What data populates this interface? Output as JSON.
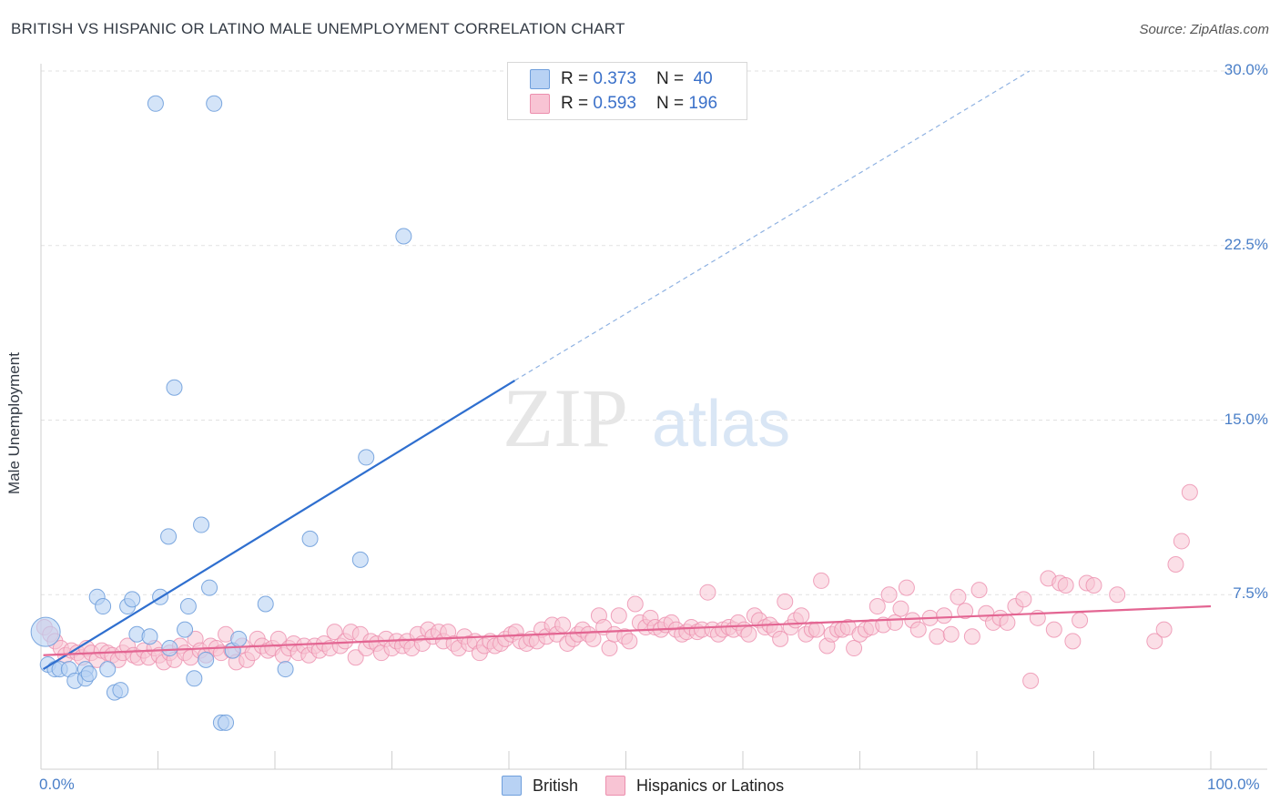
{
  "header": {
    "title": "BRITISH VS HISPANIC OR LATINO MALE UNEMPLOYMENT CORRELATION CHART",
    "source": "Source: ZipAtlas.com"
  },
  "watermark": {
    "zip": "ZIP",
    "atlas": "atlas"
  },
  "legend_top": {
    "british": {
      "r_label": "R = ",
      "r_value": "0.373",
      "n_label": "N = ",
      "n_value": "40"
    },
    "hispanic": {
      "r_label": "R = ",
      "r_value": "0.593",
      "n_label": "N = ",
      "n_value": "196"
    }
  },
  "chart_data": {
    "type": "scatter",
    "title": "BRITISH VS HISPANIC OR LATINO MALE UNEMPLOYMENT CORRELATION CHART",
    "xlabel": "",
    "ylabel": "Male Unemployment",
    "xlim": [
      0,
      100
    ],
    "ylim": [
      0,
      30
    ],
    "x_tick_labels": [
      "0.0%",
      "100.0%"
    ],
    "y_ticks": [
      7.5,
      15.0,
      22.5,
      30.0
    ],
    "y_tick_labels": [
      "7.5%",
      "15.0%",
      "22.5%",
      "30.0%"
    ],
    "grid": true,
    "legend": "bottom-center",
    "colors": {
      "british_fill": "#b8d2f4",
      "british_stroke": "#6f9fdc",
      "british_line": "#2f6fcf",
      "hispanic_fill": "#f8c4d4",
      "hispanic_stroke": "#ec8fae",
      "hispanic_line": "#e36592"
    },
    "series": [
      {
        "name": "British",
        "trend": {
          "x": [
            0.2,
            40.5
          ],
          "y": [
            4.3,
            16.7
          ],
          "dashed_to": [
            84.5,
            30.0
          ]
        },
        "points": [
          [
            0.4,
            5.9
          ],
          [
            0.6,
            4.5
          ],
          [
            1.2,
            4.3
          ],
          [
            1.6,
            4.3
          ],
          [
            2.4,
            4.3
          ],
          [
            2.9,
            3.8
          ],
          [
            3.8,
            4.3
          ],
          [
            3.8,
            3.9
          ],
          [
            4.1,
            4.1
          ],
          [
            4.8,
            7.4
          ],
          [
            5.3,
            7.0
          ],
          [
            5.7,
            4.3
          ],
          [
            6.3,
            3.3
          ],
          [
            6.8,
            3.4
          ],
          [
            7.4,
            7.0
          ],
          [
            7.8,
            7.3
          ],
          [
            8.2,
            5.8
          ],
          [
            9.3,
            5.7
          ],
          [
            9.8,
            28.6
          ],
          [
            10.2,
            7.4
          ],
          [
            10.9,
            10.0
          ],
          [
            11.0,
            5.2
          ],
          [
            11.4,
            16.4
          ],
          [
            12.3,
            6.0
          ],
          [
            12.6,
            7.0
          ],
          [
            13.1,
            3.9
          ],
          [
            13.7,
            10.5
          ],
          [
            14.1,
            4.7
          ],
          [
            14.4,
            7.8
          ],
          [
            14.8,
            28.6
          ],
          [
            15.4,
            2.0
          ],
          [
            15.8,
            2.0
          ],
          [
            16.4,
            5.1
          ],
          [
            16.9,
            5.6
          ],
          [
            19.2,
            7.1
          ],
          [
            20.9,
            4.3
          ],
          [
            23.0,
            9.9
          ],
          [
            27.3,
            9.0
          ],
          [
            27.8,
            13.4
          ],
          [
            31.0,
            22.9
          ]
        ]
      },
      {
        "name": "Hispanics or Latinos",
        "trend": {
          "x": [
            0.2,
            100
          ],
          "y": [
            4.9,
            7.0
          ]
        },
        "points": [
          [
            0.3,
            6.1
          ],
          [
            0.8,
            5.8
          ],
          [
            1.2,
            5.5
          ],
          [
            1.7,
            5.2
          ],
          [
            2.1,
            4.9
          ],
          [
            2.6,
            5.1
          ],
          [
            3.1,
            5.0
          ],
          [
            3.5,
            4.8
          ],
          [
            3.9,
            5.2
          ],
          [
            4.3,
            5.0
          ],
          [
            4.8,
            4.7
          ],
          [
            5.2,
            5.1
          ],
          [
            5.7,
            5.0
          ],
          [
            6.1,
            4.9
          ],
          [
            6.6,
            4.7
          ],
          [
            7.0,
            5.0
          ],
          [
            7.4,
            5.3
          ],
          [
            7.9,
            4.9
          ],
          [
            8.3,
            4.8
          ],
          [
            8.8,
            5.1
          ],
          [
            9.2,
            4.8
          ],
          [
            9.7,
            5.2
          ],
          [
            10.1,
            4.9
          ],
          [
            10.5,
            4.6
          ],
          [
            11.0,
            5.0
          ],
          [
            11.4,
            4.7
          ],
          [
            11.9,
            5.3
          ],
          [
            12.3,
            5.0
          ],
          [
            12.8,
            4.8
          ],
          [
            13.2,
            5.6
          ],
          [
            13.6,
            5.1
          ],
          [
            14.1,
            4.9
          ],
          [
            14.5,
            5.3
          ],
          [
            15.0,
            5.2
          ],
          [
            15.4,
            5.0
          ],
          [
            15.8,
            5.8
          ],
          [
            16.3,
            5.1
          ],
          [
            16.7,
            4.6
          ],
          [
            17.2,
            5.3
          ],
          [
            17.6,
            4.7
          ],
          [
            18.1,
            5.0
          ],
          [
            18.5,
            5.6
          ],
          [
            18.9,
            5.3
          ],
          [
            19.4,
            5.1
          ],
          [
            19.8,
            5.2
          ],
          [
            20.3,
            5.6
          ],
          [
            20.7,
            4.9
          ],
          [
            21.2,
            5.2
          ],
          [
            21.6,
            5.4
          ],
          [
            22.0,
            5.0
          ],
          [
            22.5,
            5.3
          ],
          [
            22.9,
            4.9
          ],
          [
            23.4,
            5.3
          ],
          [
            23.8,
            5.1
          ],
          [
            24.2,
            5.4
          ],
          [
            24.7,
            5.2
          ],
          [
            25.1,
            5.9
          ],
          [
            25.6,
            5.3
          ],
          [
            26.0,
            5.5
          ],
          [
            26.5,
            5.9
          ],
          [
            26.9,
            4.8
          ],
          [
            27.3,
            5.8
          ],
          [
            27.8,
            5.2
          ],
          [
            28.2,
            5.5
          ],
          [
            28.7,
            5.4
          ],
          [
            29.1,
            5.0
          ],
          [
            29.5,
            5.6
          ],
          [
            30.0,
            5.2
          ],
          [
            30.4,
            5.5
          ],
          [
            30.9,
            5.3
          ],
          [
            31.3,
            5.5
          ],
          [
            31.7,
            5.2
          ],
          [
            32.2,
            5.8
          ],
          [
            32.6,
            5.4
          ],
          [
            33.1,
            6.0
          ],
          [
            33.5,
            5.7
          ],
          [
            34.0,
            5.9
          ],
          [
            34.4,
            5.5
          ],
          [
            34.8,
            5.9
          ],
          [
            35.3,
            5.4
          ],
          [
            35.7,
            5.2
          ],
          [
            36.2,
            5.7
          ],
          [
            36.6,
            5.4
          ],
          [
            37.1,
            5.5
          ],
          [
            37.5,
            5.0
          ],
          [
            37.9,
            5.3
          ],
          [
            38.4,
            5.5
          ],
          [
            38.8,
            5.3
          ],
          [
            39.3,
            5.4
          ],
          [
            39.7,
            5.6
          ],
          [
            40.2,
            5.8
          ],
          [
            40.6,
            5.9
          ],
          [
            41.0,
            5.5
          ],
          [
            41.5,
            5.4
          ],
          [
            41.9,
            5.6
          ],
          [
            42.4,
            5.5
          ],
          [
            42.8,
            6.0
          ],
          [
            43.2,
            5.7
          ],
          [
            43.7,
            6.2
          ],
          [
            44.1,
            5.8
          ],
          [
            44.6,
            6.2
          ],
          [
            45.0,
            5.4
          ],
          [
            45.5,
            5.6
          ],
          [
            45.9,
            5.8
          ],
          [
            46.3,
            6.0
          ],
          [
            46.8,
            5.8
          ],
          [
            47.2,
            5.6
          ],
          [
            47.7,
            6.6
          ],
          [
            48.1,
            6.1
          ],
          [
            48.6,
            5.2
          ],
          [
            49.0,
            5.8
          ],
          [
            49.4,
            6.6
          ],
          [
            49.9,
            5.7
          ],
          [
            50.3,
            5.5
          ],
          [
            50.8,
            7.1
          ],
          [
            51.2,
            6.3
          ],
          [
            51.7,
            6.1
          ],
          [
            52.1,
            6.5
          ],
          [
            52.5,
            6.1
          ],
          [
            53.0,
            6.0
          ],
          [
            53.4,
            6.2
          ],
          [
            53.9,
            6.3
          ],
          [
            54.3,
            6.0
          ],
          [
            54.8,
            5.8
          ],
          [
            55.2,
            5.9
          ],
          [
            55.6,
            6.1
          ],
          [
            56.1,
            5.9
          ],
          [
            56.5,
            6.0
          ],
          [
            57.0,
            7.6
          ],
          [
            57.4,
            6.0
          ],
          [
            57.9,
            5.8
          ],
          [
            58.3,
            6.0
          ],
          [
            58.8,
            6.1
          ],
          [
            59.2,
            6.0
          ],
          [
            59.6,
            6.3
          ],
          [
            60.1,
            6.0
          ],
          [
            60.5,
            5.8
          ],
          [
            61.0,
            6.6
          ],
          [
            61.4,
            6.4
          ],
          [
            61.9,
            6.1
          ],
          [
            62.3,
            6.2
          ],
          [
            62.7,
            6.0
          ],
          [
            63.2,
            5.6
          ],
          [
            63.6,
            7.2
          ],
          [
            64.1,
            6.1
          ],
          [
            64.5,
            6.4
          ],
          [
            65.0,
            6.6
          ],
          [
            65.4,
            5.8
          ],
          [
            65.9,
            6.0
          ],
          [
            66.3,
            6.0
          ],
          [
            66.7,
            8.1
          ],
          [
            67.2,
            5.3
          ],
          [
            67.6,
            5.8
          ],
          [
            68.1,
            6.0
          ],
          [
            68.5,
            6.0
          ],
          [
            69.0,
            6.1
          ],
          [
            69.5,
            5.2
          ],
          [
            70.0,
            5.8
          ],
          [
            70.5,
            6.0
          ],
          [
            71.0,
            6.1
          ],
          [
            71.5,
            7.0
          ],
          [
            72.0,
            6.2
          ],
          [
            72.5,
            7.5
          ],
          [
            73.0,
            6.3
          ],
          [
            73.5,
            6.9
          ],
          [
            74.0,
            7.8
          ],
          [
            74.5,
            6.4
          ],
          [
            75.0,
            6.0
          ],
          [
            76.0,
            6.5
          ],
          [
            76.6,
            5.7
          ],
          [
            77.2,
            6.6
          ],
          [
            77.8,
            5.8
          ],
          [
            78.4,
            7.4
          ],
          [
            79.0,
            6.8
          ],
          [
            79.6,
            5.7
          ],
          [
            80.2,
            7.7
          ],
          [
            80.8,
            6.7
          ],
          [
            81.4,
            6.3
          ],
          [
            82.0,
            6.5
          ],
          [
            82.6,
            6.3
          ],
          [
            83.3,
            7.0
          ],
          [
            84.0,
            7.3
          ],
          [
            84.6,
            3.8
          ],
          [
            85.2,
            6.5
          ],
          [
            86.1,
            8.2
          ],
          [
            86.6,
            6.0
          ],
          [
            87.1,
            8.0
          ],
          [
            87.6,
            7.9
          ],
          [
            88.2,
            5.5
          ],
          [
            88.8,
            6.4
          ],
          [
            89.4,
            8.0
          ],
          [
            90.0,
            7.9
          ],
          [
            92.0,
            7.5
          ],
          [
            95.2,
            5.5
          ],
          [
            96.0,
            6.0
          ],
          [
            97.0,
            8.8
          ],
          [
            97.5,
            9.8
          ],
          [
            98.2,
            11.9
          ]
        ]
      }
    ]
  },
  "bottom_legend": {
    "british": "British",
    "hispanic": "Hispanics or Latinos"
  }
}
